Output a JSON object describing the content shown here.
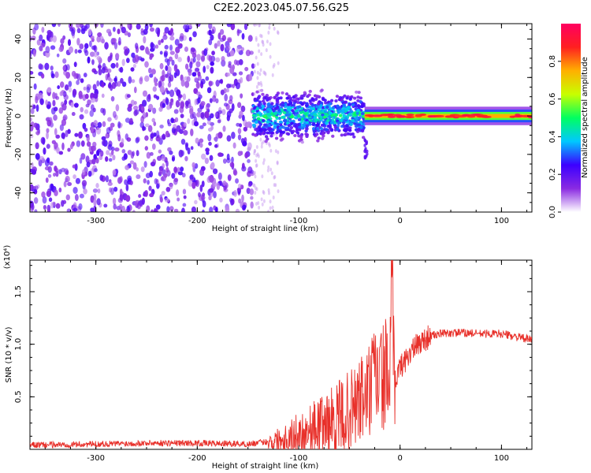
{
  "figure": {
    "title": "C2E2.2023.045.07.56.G25"
  },
  "chart_data": [
    {
      "type": "heatmap",
      "xlabel": "Height of straight line (km)",
      "ylabel": "Frequency (Hz)",
      "xlim": [
        -365,
        130
      ],
      "ylim": [
        -50,
        48
      ],
      "x_ticks": [
        -300,
        -200,
        -100,
        0,
        100
      ],
      "y_ticks": [
        -40,
        -20,
        0,
        20,
        40
      ],
      "x_tick_labels": [
        "-300",
        "-200",
        "-100",
        "0",
        "100"
      ],
      "y_tick_labels": [
        "-40",
        "-20",
        "0",
        "20",
        "40"
      ],
      "colorbar": {
        "label": "Normalized spectral amplitude",
        "range": [
          0,
          1
        ],
        "ticks": [
          0.0,
          0.2,
          0.4,
          0.6,
          0.8
        ],
        "tick_labels": [
          "0.0",
          "0.2",
          "0.4",
          "0.6",
          "0.8"
        ],
        "colormap": [
          "#ffffff",
          "#8a2be2",
          "#3c00ff",
          "#00c8ff",
          "#00ff60",
          "#c8ff00",
          "#ffb000",
          "#ff2020",
          "#ff0060"
        ]
      },
      "regions": [
        {
          "x_range": [
            -365,
            -145
          ],
          "freq_range": [
            -50,
            48
          ],
          "amplitude": 0.15,
          "note": "broadband noise"
        },
        {
          "x_range": [
            -145,
            -35
          ],
          "center_freq": 0,
          "band_halfwidth": 10,
          "amplitude": 0.35
        },
        {
          "x_range": [
            -35,
            130
          ],
          "center_freq": 0,
          "band_halfwidth": 3,
          "amplitude": 0.75
        }
      ]
    },
    {
      "type": "line",
      "xlabel": "Height of straight line (km)",
      "ylabel": "SNR (10 * v/v)",
      "y_multiplier": "(x10⁴)",
      "xlim": [
        -365,
        130
      ],
      "ylim": [
        0,
        1.8
      ],
      "x_ticks": [
        -300,
        -200,
        -100,
        0,
        100
      ],
      "y_ticks": [
        0.5,
        1.0,
        1.5
      ],
      "x_tick_labels": [
        "-300",
        "-200",
        "-100",
        "0",
        "100"
      ],
      "y_tick_labels": [
        "0.5",
        "1.0",
        "1.5"
      ],
      "series": [
        {
          "color": "#e8302a",
          "x": [
            -365,
            -300,
            -250,
            -200,
            -150,
            -125,
            -110,
            -100,
            -80,
            -60,
            -50,
            -40,
            -30,
            -25,
            -20,
            -15,
            -10,
            -8,
            -6,
            -4,
            0,
            10,
            20,
            30,
            40,
            60,
            80,
            100,
            120,
            130
          ],
          "y": [
            0.04,
            0.05,
            0.06,
            0.06,
            0.05,
            0.08,
            0.12,
            0.15,
            0.22,
            0.3,
            0.35,
            0.45,
            0.55,
            0.7,
            0.65,
            0.72,
            0.62,
            1.76,
            0.55,
            0.7,
            0.78,
            0.92,
            1.02,
            1.08,
            1.1,
            1.11,
            1.1,
            1.1,
            1.06,
            1.04
          ]
        }
      ]
    }
  ]
}
